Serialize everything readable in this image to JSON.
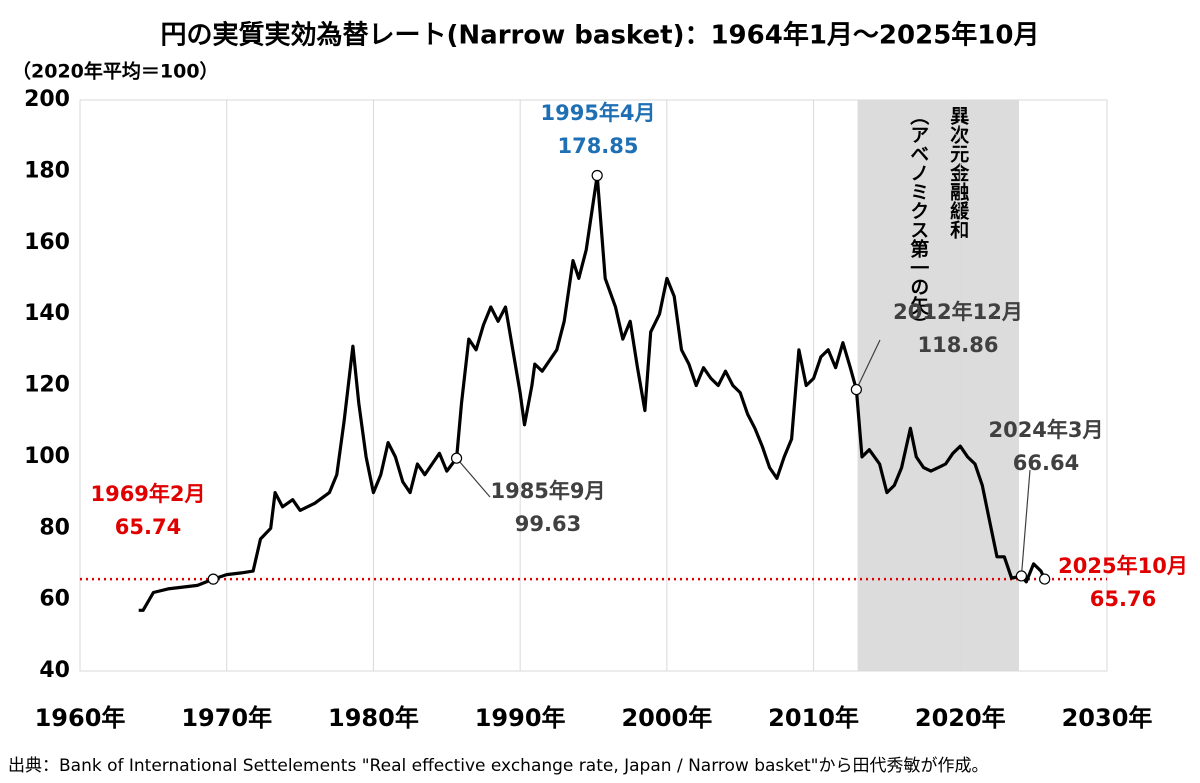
{
  "chart_data": {
    "type": "line",
    "title": "円の実質実効為替レート(Narrow basket)：1964年1月～2025年10月",
    "subtitle": "（2020年平均＝100）",
    "source": "出典：Bank of International Settelements \"Real effective exchange rate, Japan / Narrow basket\"から田代秀敏が作成。",
    "xlim": [
      1960,
      2030
    ],
    "xticks": [
      {
        "value": 1960,
        "label": "1960年"
      },
      {
        "value": 1970,
        "label": "1970年"
      },
      {
        "value": 1980,
        "label": "1980年"
      },
      {
        "value": 1990,
        "label": "1990年"
      },
      {
        "value": 2000,
        "label": "2000年"
      },
      {
        "value": 2010,
        "label": "2010年"
      },
      {
        "value": 2020,
        "label": "2020年"
      },
      {
        "value": 2030,
        "label": "2030年"
      }
    ],
    "ylim": [
      40,
      200
    ],
    "yticks": [
      40,
      60,
      80,
      100,
      120,
      140,
      160,
      180,
      200
    ],
    "grid": true,
    "series": [
      {
        "color": "#000000",
        "x": [
          1964.0,
          1964.3,
          1965,
          1966,
          1967,
          1968,
          1969.083,
          1970,
          1971,
          1971.8,
          1972.3,
          1973,
          1973.3,
          1973.8,
          1974.5,
          1975,
          1976,
          1977,
          1977.5,
          1978,
          1978.6,
          1979,
          1979.5,
          1980,
          1980.5,
          1981,
          1981.5,
          1982,
          1982.5,
          1983,
          1983.5,
          1984,
          1984.5,
          1985,
          1985.667,
          1986,
          1986.5,
          1987,
          1987.5,
          1988,
          1988.5,
          1989,
          1989.5,
          1990,
          1990.3,
          1990.8,
          1991,
          1991.5,
          1992,
          1992.5,
          1993,
          1993.6,
          1994,
          1994.5,
          1995.25,
          1995.8,
          1996.5,
          1997,
          1997.5,
          1998,
          1998.5,
          1998.9,
          1999.5,
          2000,
          2000.5,
          2001,
          2001.5,
          2002,
          2002.5,
          2003,
          2003.5,
          2004,
          2004.5,
          2005,
          2005.5,
          2006,
          2006.5,
          2007,
          2007.5,
          2008,
          2008.5,
          2009,
          2009.5,
          2010,
          2010.5,
          2011,
          2011.5,
          2012,
          2012.5,
          2012.917,
          2013.3,
          2013.8,
          2014.5,
          2015,
          2015.5,
          2016,
          2016.6,
          2017,
          2017.5,
          2018,
          2018.5,
          2019,
          2019.5,
          2020,
          2020.5,
          2021,
          2021.5,
          2022,
          2022.5,
          2023,
          2023.5,
          2024.167,
          2024.5,
          2025,
          2025.5,
          2025.75
        ],
        "values": [
          57,
          57,
          62,
          63,
          63.5,
          64,
          65.74,
          67,
          67.5,
          68,
          77,
          80,
          90,
          86,
          88,
          85,
          87,
          90,
          95,
          110,
          131,
          115,
          100,
          90,
          95,
          104,
          100,
          93,
          90,
          98,
          95,
          98,
          101,
          96,
          99.63,
          115,
          133,
          130,
          137,
          142,
          138,
          142,
          130,
          118,
          109,
          120,
          126,
          124,
          127,
          130,
          138,
          155,
          150,
          158,
          178.85,
          150,
          142,
          133,
          138,
          125,
          113,
          135,
          140,
          150,
          145,
          130,
          126,
          120,
          125,
          122,
          120,
          124,
          120,
          118,
          112,
          108,
          103,
          97,
          94,
          100,
          105,
          130,
          120,
          122,
          128,
          130,
          125,
          132,
          125,
          118.86,
          100,
          102,
          98,
          90,
          92,
          97,
          108,
          100,
          97,
          96,
          97,
          98,
          101,
          103,
          100,
          98,
          92,
          82,
          72,
          72,
          66,
          66.64,
          65,
          70,
          68,
          65.76
        ]
      }
    ],
    "shade": {
      "from": 2013,
      "to": 2024,
      "labels": [
        "異次元金融緩和",
        "（アベノミクス第一の矢）"
      ]
    },
    "annotations": [
      {
        "label": "1969年2月",
        "x": 1969.083,
        "value": 65.74,
        "color": "#e00000"
      },
      {
        "label": "1985年9月",
        "x": 1985.667,
        "value": 99.63,
        "color": "#404040"
      },
      {
        "label": "1995年4月",
        "x": 1995.25,
        "value": 178.85,
        "color": "#1f6fb5"
      },
      {
        "label": "2012年12月",
        "x": 2012.917,
        "value": 118.86,
        "color": "#404040"
      },
      {
        "label": "2024年3月",
        "x": 2024.167,
        "value": 66.64,
        "color": "#404040"
      },
      {
        "label": "2025年10月",
        "x": 2025.75,
        "value": 65.76,
        "color": "#e00000"
      }
    ]
  }
}
